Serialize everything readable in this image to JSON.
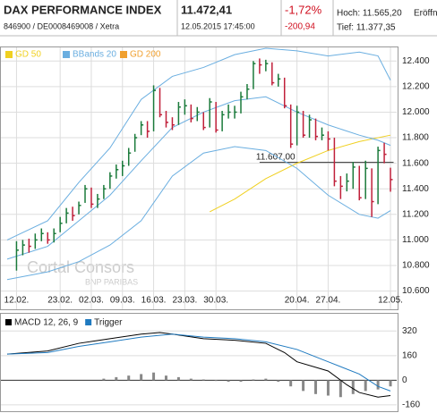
{
  "header": {
    "title": "DAX PERFORMANCE INDEX",
    "price": "11.472,41",
    "change_pct": "-1,72%",
    "high": "Hoch: 11.565,20",
    "open": "Eröffn",
    "id": "846900 / DE0008469008 / Xetra",
    "time": "12.05.2015 17:45:00",
    "change": "-200,94",
    "low": "Tief: 11.377,35"
  },
  "watermark": [
    "Cortal Consors",
    "BNP PARIBAS"
  ],
  "chart_data": [
    {
      "type": "hlc",
      "up_color": "#1a7a3a",
      "down_color": "#c0203a",
      "xlim": [
        -1.5,
        61
      ],
      "ylim": [
        10590,
        12430
      ],
      "xticks": [
        {
          "value": 0,
          "label": "12.02."
        },
        {
          "value": 7,
          "label": "23.02."
        },
        {
          "value": 12,
          "label": "02.03."
        },
        {
          "value": 17,
          "label": "09.03."
        },
        {
          "value": 22,
          "label": "16.03."
        },
        {
          "value": 27,
          "label": "23.03."
        },
        {
          "value": 32,
          "label": "30.03."
        },
        {
          "value": 45,
          "label": "20.04."
        },
        {
          "value": 50,
          "label": "27.04."
        },
        {
          "value": 60,
          "label": "12.05."
        }
      ],
      "yticks": [
        {
          "value": 10600,
          "label": "10.600"
        },
        {
          "value": 10800,
          "label": "10.800"
        },
        {
          "value": 11000,
          "label": "11.000"
        },
        {
          "value": 11200,
          "label": "11.200"
        },
        {
          "value": 11400,
          "label": "11.400"
        },
        {
          "value": 11600,
          "label": "11.600"
        },
        {
          "value": 11800,
          "label": "11.800"
        },
        {
          "value": 12000,
          "label": "12.000"
        },
        {
          "value": 12200,
          "label": "12.200"
        },
        {
          "value": 12400,
          "label": "12.400"
        }
      ],
      "grid": true,
      "close": [
        10920,
        10960,
        10950,
        11000,
        11050,
        11000,
        11050,
        11130,
        11210,
        11190,
        11270,
        11400,
        11280,
        11320,
        11400,
        11500,
        11550,
        11580,
        11680,
        11800,
        11900,
        11850,
        12170,
        11980,
        11920,
        11900,
        12040,
        12050,
        11950,
        12000,
        11880,
        12080,
        11860,
        11980,
        12000,
        12000,
        12120,
        12180,
        12380,
        12370,
        12380,
        12230,
        12260,
        12050,
        11750,
        12000,
        11820,
        11940,
        11810,
        11820,
        11790,
        11460,
        11420,
        11460,
        11570,
        11330,
        11560,
        11300,
        11700,
        11670,
        11472.41
      ],
      "high": [
        10990,
        11000,
        11010,
        11050,
        11090,
        11060,
        11090,
        11180,
        11250,
        11260,
        11300,
        11430,
        11410,
        11360,
        11430,
        11530,
        11590,
        11620,
        11720,
        11830,
        11930,
        11930,
        12210,
        12190,
        12010,
        11960,
        12080,
        12100,
        12060,
        12040,
        12000,
        12110,
        12080,
        12010,
        12060,
        12050,
        12160,
        12220,
        12400,
        12420,
        12410,
        12390,
        12300,
        12270,
        12060,
        12050,
        12010,
        11980,
        11950,
        11880,
        11850,
        11800,
        11500,
        11520,
        11610,
        11580,
        11620,
        11560,
        11730,
        11760,
        11565.2
      ],
      "low": [
        10760,
        10880,
        10900,
        10930,
        10990,
        10970,
        10980,
        11060,
        11130,
        11150,
        11200,
        11290,
        11250,
        11250,
        11320,
        11400,
        11480,
        11500,
        11580,
        11690,
        11820,
        11800,
        11850,
        11960,
        11880,
        11860,
        11900,
        11980,
        11920,
        11930,
        11860,
        11880,
        11840,
        11850,
        11950,
        11950,
        11990,
        12100,
        12180,
        12300,
        12320,
        12210,
        12200,
        12030,
        11720,
        11740,
        11800,
        11800,
        11780,
        11780,
        11700,
        11420,
        11320,
        11380,
        11400,
        11310,
        11320,
        11180,
        11280,
        11600,
        11377.35
      ],
      "legend": [
        {
          "name": "GD 50",
          "color": "#f0d020",
          "x": [
            31,
            35,
            40,
            45,
            50,
            55,
            60
          ],
          "values": [
            11220,
            11320,
            11480,
            11600,
            11700,
            11770,
            11820
          ]
        },
        {
          "name": "BBands 20",
          "color": "#6aaee0",
          "bands": [
            {
              "x": [
                -1.5,
                5,
                10,
                15,
                20,
                25,
                30,
                35,
                40,
                45,
                50,
                55,
                58,
                60
              ],
              "values": [
                11000,
                11150,
                11450,
                11720,
                12100,
                12280,
                12350,
                12450,
                12500,
                12480,
                12440,
                12470,
                12440,
                12250
              ]
            },
            {
              "x": [
                -1.5,
                5,
                10,
                15,
                20,
                25,
                30,
                35,
                40,
                45,
                50,
                55,
                58,
                60
              ],
              "values": [
                10850,
                10950,
                11150,
                11350,
                11620,
                11880,
                12000,
                12090,
                12120,
                12000,
                11900,
                11820,
                11780,
                11740
              ]
            },
            {
              "x": [
                -1.5,
                5,
                10,
                15,
                20,
                25,
                30,
                35,
                40,
                45,
                50,
                55,
                58,
                60
              ],
              "values": [
                10690,
                10750,
                10830,
                10960,
                11150,
                11500,
                11680,
                11730,
                11700,
                11560,
                11350,
                11200,
                11170,
                11230
              ]
            }
          ]
        },
        {
          "name": "GD 200",
          "color": "#f0a030"
        }
      ],
      "hline": {
        "value": 11607,
        "label": "11.607,00",
        "x": [
          39,
          60.5
        ]
      }
    },
    {
      "type": "macd",
      "xlim": [
        -1.5,
        61
      ],
      "ylim": [
        -190,
        345
      ],
      "yticks": [
        320,
        160,
        0,
        -160
      ],
      "series": [
        {
          "name": "MACD 12, 26, 9",
          "color": "#000000",
          "x": [
            -1.5,
            5,
            10,
            15,
            20,
            23,
            25,
            30,
            35,
            40,
            43,
            45,
            50,
            53,
            55,
            58,
            60
          ],
          "values": [
            170,
            190,
            240,
            270,
            300,
            310,
            300,
            270,
            260,
            240,
            180,
            120,
            60,
            -30,
            -80,
            -110,
            -100
          ]
        },
        {
          "name": "Trigger",
          "color": "#1f7ac0",
          "x": [
            -1.5,
            5,
            10,
            15,
            20,
            25,
            30,
            35,
            40,
            45,
            50,
            55,
            58,
            60
          ],
          "values": [
            170,
            180,
            220,
            250,
            280,
            300,
            280,
            270,
            250,
            200,
            120,
            40,
            -40,
            -70
          ]
        }
      ],
      "histogram": {
        "color": "#888888",
        "x": [
          14,
          16,
          18,
          20,
          22,
          24,
          26,
          28,
          30,
          32,
          34,
          36,
          38,
          40,
          42,
          44,
          46,
          48,
          50,
          52,
          54,
          56,
          58,
          60
        ],
        "values": [
          10,
          20,
          30,
          40,
          50,
          30,
          20,
          10,
          5,
          -5,
          -10,
          -10,
          5,
          10,
          -10,
          -40,
          -70,
          -90,
          -100,
          -110,
          -90,
          -70,
          -60,
          -40
        ]
      }
    }
  ]
}
